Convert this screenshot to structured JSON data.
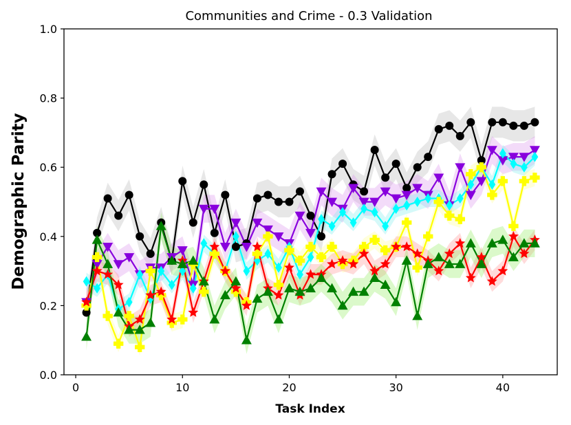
{
  "chart_data": {
    "type": "line",
    "title": "Communities and Crime - 0.3 Validation",
    "xlabel": "Task Index",
    "ylabel": "Demographic Parity",
    "xlim": [
      -1.1,
      45.1
    ],
    "ylim": [
      0.0,
      1.0
    ],
    "xticks": [
      0,
      10,
      20,
      30,
      40
    ],
    "xtick_labels": [
      "0",
      "10",
      "20",
      "30",
      "40"
    ],
    "yticks": [
      0.0,
      0.2,
      0.4,
      0.6,
      0.8,
      1.0
    ],
    "ytick_labels": [
      "0.0",
      "0.2",
      "0.4",
      "0.6",
      "0.8",
      "1.0"
    ],
    "grid": false,
    "legend": "none",
    "x": [
      1,
      2,
      3,
      4,
      5,
      6,
      7,
      8,
      9,
      10,
      11,
      12,
      13,
      14,
      15,
      16,
      17,
      18,
      19,
      20,
      21,
      22,
      23,
      24,
      25,
      26,
      27,
      28,
      29,
      30,
      31,
      32,
      33,
      34,
      35,
      36,
      37,
      38,
      39,
      40,
      41,
      42,
      43
    ],
    "series": [
      {
        "name": "black",
        "color": "#000000",
        "band_color": "#bbbbbb",
        "marker": "circle",
        "band": 0.045,
        "values": [
          0.18,
          0.41,
          0.51,
          0.46,
          0.52,
          0.4,
          0.35,
          0.44,
          0.33,
          0.56,
          0.44,
          0.55,
          0.41,
          0.52,
          0.37,
          0.38,
          0.51,
          0.52,
          0.5,
          0.5,
          0.53,
          0.46,
          0.4,
          0.58,
          0.61,
          0.55,
          0.53,
          0.65,
          0.57,
          0.61,
          0.54,
          0.6,
          0.63,
          0.71,
          0.72,
          0.69,
          0.73,
          0.62,
          0.73,
          0.73,
          0.72,
          0.72,
          0.73
        ]
      },
      {
        "name": "purple",
        "color": "#8800dd",
        "band_color": "#dd99ee",
        "marker": "triangle-down",
        "band": 0.04,
        "values": [
          0.21,
          0.32,
          0.37,
          0.32,
          0.34,
          0.29,
          0.31,
          0.31,
          0.34,
          0.36,
          0.26,
          0.48,
          0.48,
          0.37,
          0.44,
          0.37,
          0.44,
          0.42,
          0.4,
          0.38,
          0.46,
          0.41,
          0.53,
          0.5,
          0.48,
          0.54,
          0.5,
          0.5,
          0.53,
          0.51,
          0.52,
          0.54,
          0.52,
          0.57,
          0.49,
          0.6,
          0.52,
          0.56,
          0.65,
          0.62,
          0.63,
          0.63,
          0.65
        ]
      },
      {
        "name": "cyan",
        "color": "#00ffff",
        "band_color": "#88eeee",
        "marker": "diamond",
        "band": 0.025,
        "values": [
          0.27,
          0.25,
          0.29,
          0.19,
          0.21,
          0.29,
          0.22,
          0.3,
          0.26,
          0.3,
          0.25,
          0.38,
          0.35,
          0.3,
          0.4,
          0.3,
          0.33,
          0.35,
          0.31,
          0.37,
          0.29,
          0.34,
          0.45,
          0.43,
          0.47,
          0.44,
          0.48,
          0.47,
          0.43,
          0.48,
          0.49,
          0.5,
          0.51,
          0.51,
          0.49,
          0.51,
          0.55,
          0.6,
          0.55,
          0.64,
          0.61,
          0.6,
          0.63
        ]
      },
      {
        "name": "yellow",
        "color": "#ffff00",
        "band_color": "#ffff99",
        "marker": "plus",
        "band": 0.025,
        "values": [
          0.2,
          0.34,
          0.17,
          0.09,
          0.17,
          0.08,
          0.3,
          0.23,
          0.15,
          0.16,
          0.32,
          0.24,
          0.35,
          0.3,
          0.24,
          0.21,
          0.35,
          0.4,
          0.26,
          0.36,
          0.33,
          0.37,
          0.34,
          0.37,
          0.32,
          0.33,
          0.37,
          0.39,
          0.36,
          0.37,
          0.44,
          0.31,
          0.4,
          0.5,
          0.46,
          0.45,
          0.58,
          0.6,
          0.52,
          0.56,
          0.43,
          0.56,
          0.57
        ]
      },
      {
        "name": "red",
        "color": "#ff0000",
        "band_color": "#ff9999",
        "marker": "star",
        "band": 0.03,
        "values": [
          0.21,
          0.3,
          0.29,
          0.26,
          0.14,
          0.16,
          0.23,
          0.24,
          0.16,
          0.33,
          0.18,
          0.27,
          0.37,
          0.3,
          0.25,
          0.2,
          0.37,
          0.25,
          0.23,
          0.31,
          0.23,
          0.29,
          0.29,
          0.32,
          0.33,
          0.32,
          0.35,
          0.3,
          0.32,
          0.37,
          0.37,
          0.35,
          0.33,
          0.3,
          0.35,
          0.38,
          0.28,
          0.34,
          0.27,
          0.3,
          0.4,
          0.35,
          0.39
        ]
      },
      {
        "name": "green",
        "color": "#008000",
        "band_color": "#99ee66",
        "marker": "triangle-up",
        "band": 0.04,
        "values": [
          0.11,
          0.39,
          0.32,
          0.18,
          0.13,
          0.13,
          0.15,
          0.43,
          0.33,
          0.32,
          0.33,
          0.27,
          0.16,
          0.23,
          0.27,
          0.1,
          0.22,
          0.24,
          0.16,
          0.25,
          0.24,
          0.25,
          0.28,
          0.25,
          0.2,
          0.24,
          0.24,
          0.28,
          0.26,
          0.21,
          0.33,
          0.17,
          0.32,
          0.34,
          0.32,
          0.32,
          0.38,
          0.32,
          0.38,
          0.39,
          0.34,
          0.38,
          0.38
        ]
      }
    ]
  }
}
